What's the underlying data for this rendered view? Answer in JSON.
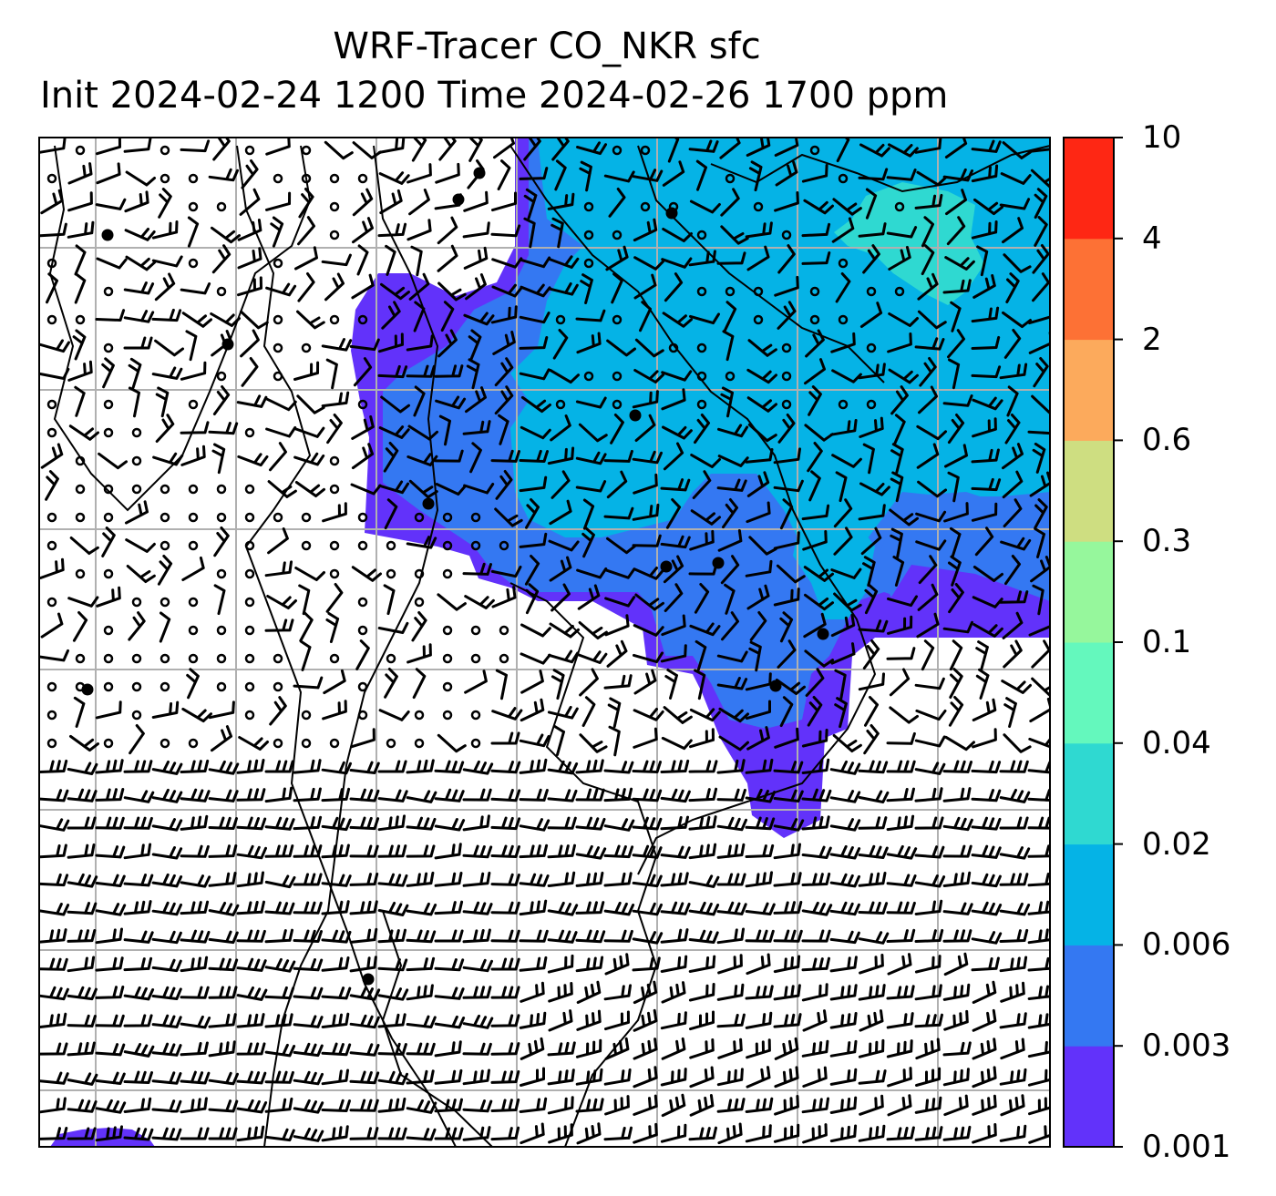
{
  "title": {
    "line1": "WRF-Tracer CO_NKR sfc",
    "line2": "Init 2024-02-24 1200 Time 2024-02-26 1700 ppm"
  },
  "colorbar": {
    "levels": [
      "0.001",
      "0.003",
      "0.006",
      "0.02",
      "0.04",
      "0.1",
      "0.3",
      "0.6",
      "2",
      "4",
      "10"
    ],
    "colors": [
      "#6232fa",
      "#3478f2",
      "#05b3e6",
      "#2fd9d1",
      "#64f8bd",
      "#96f79c",
      "#cede81",
      "#fcaa5c",
      "#fd7135",
      "#fe2714"
    ]
  },
  "map": {
    "grid_lon_lines": 7,
    "grid_lat_lines": 7,
    "concentration_regions": [
      {
        "name": "low-west-plume",
        "level": "0.001"
      },
      {
        "name": "mid-band",
        "level": "0.003"
      },
      {
        "name": "main-plume",
        "level": "0.006"
      },
      {
        "name": "northeast-peak",
        "level": "0.02"
      },
      {
        "name": "southwest-corner",
        "level": "0.001"
      }
    ]
  }
}
